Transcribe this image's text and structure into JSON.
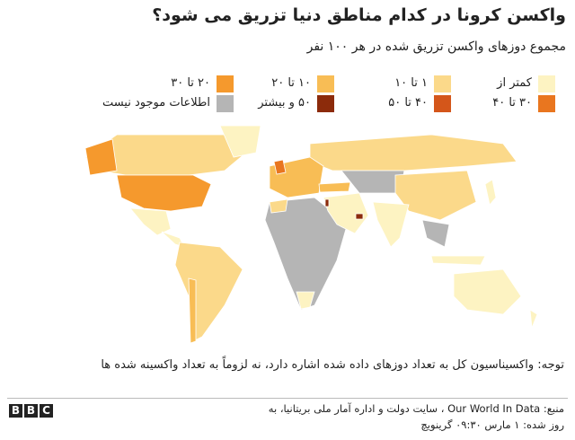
{
  "header": {
    "title": "واکسن کرونا در کدام مناطق دنیا تزریق می شود؟",
    "subtitle": "مجموع دوزهای واکسن تزریق شده در هر ۱۰۰ نفر"
  },
  "legend": [
    {
      "label": "کمتر از",
      "color": "#fdf3c2"
    },
    {
      "label": "۱ تا ۱۰",
      "color": "#fbd98a"
    },
    {
      "label": "۱۰ تا ۲۰",
      "color": "#f8bd55"
    },
    {
      "label": "۲۰ تا ۳۰",
      "color": "#f5992d"
    },
    {
      "label": "۳۰ تا ۴۰",
      "color": "#e9761f"
    },
    {
      "label": "۴۰ تا ۵۰",
      "color": "#d4561a"
    },
    {
      "label": "۵۰ و بیشتر",
      "color": "#8c2b0b"
    },
    {
      "label": "اطلاعات موجود نیست",
      "color": "#b5b5b5"
    }
  ],
  "note": "توجه: واکسیناسیون کل به تعداد دوزهای داده شده اشاره دارد، نه لزوماً به تعداد واکسینه شده ها",
  "source": {
    "line1": "منبع: Our World In Data ، سایت دولت و اداره آمار ملی بریتانیا، به",
    "line2": "روز شده: ۱ مارس ۰۹:۳۰ گرینویچ"
  },
  "logo": [
    "B",
    "B",
    "C"
  ]
}
